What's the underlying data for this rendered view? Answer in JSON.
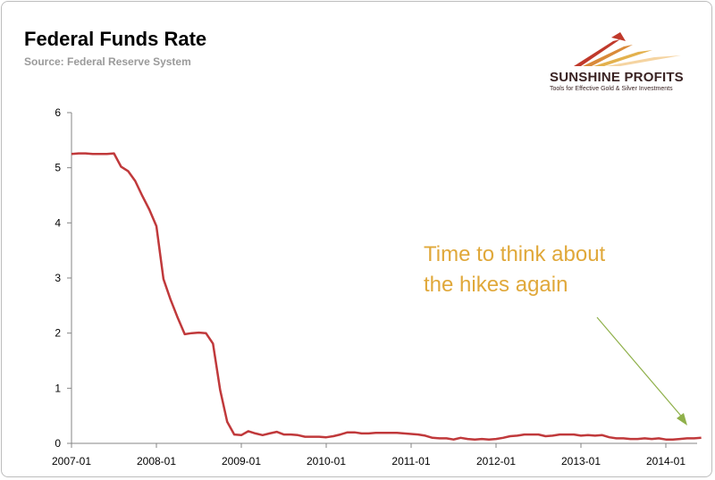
{
  "header": {
    "title": "Federal Funds Rate",
    "subtitle": "Source: Federal Reserve System"
  },
  "logo": {
    "name": "SUNSHINE PROFITS",
    "tagline": "Tools for Effective Gold & Silver Investments",
    "colors": [
      "#c0392b",
      "#e0a83a",
      "#f2c98a"
    ]
  },
  "annotation": {
    "line1": "Time to think about",
    "line2": "the hikes again",
    "color": "#e0a83a",
    "arrow_color": "#8fb04a"
  },
  "chart_data": {
    "type": "line",
    "title": "Federal Funds Rate",
    "xlabel": "",
    "ylabel": "",
    "ylim": [
      0,
      6
    ],
    "yticks": [
      0,
      1,
      2,
      3,
      4,
      5,
      6
    ],
    "xticks": [
      "2007-01",
      "2008-01",
      "2009-01",
      "2010-01",
      "2011-01",
      "2012-01",
      "2013-01",
      "2014-01"
    ],
    "grid": false,
    "series": [
      {
        "color": "#c0393b",
        "start": "2007-01",
        "frequency": "monthly",
        "values": [
          5.25,
          5.26,
          5.26,
          5.25,
          5.25,
          5.25,
          5.26,
          5.02,
          4.94,
          4.76,
          4.49,
          4.24,
          3.94,
          2.98,
          2.61,
          2.28,
          1.98,
          2.0,
          2.01,
          2.0,
          1.81,
          0.97,
          0.39,
          0.16,
          0.15,
          0.22,
          0.18,
          0.15,
          0.18,
          0.21,
          0.16,
          0.16,
          0.15,
          0.12,
          0.12,
          0.12,
          0.11,
          0.13,
          0.16,
          0.2,
          0.2,
          0.18,
          0.18,
          0.19,
          0.19,
          0.19,
          0.19,
          0.18,
          0.17,
          0.16,
          0.14,
          0.1,
          0.09,
          0.09,
          0.07,
          0.1,
          0.08,
          0.07,
          0.08,
          0.07,
          0.08,
          0.1,
          0.13,
          0.14,
          0.16,
          0.16,
          0.16,
          0.13,
          0.14,
          0.16,
          0.16,
          0.16,
          0.14,
          0.15,
          0.14,
          0.15,
          0.11,
          0.09,
          0.09,
          0.08,
          0.08,
          0.09,
          0.08,
          0.09,
          0.07,
          0.07,
          0.08,
          0.09,
          0.09,
          0.1
        ]
      }
    ]
  }
}
